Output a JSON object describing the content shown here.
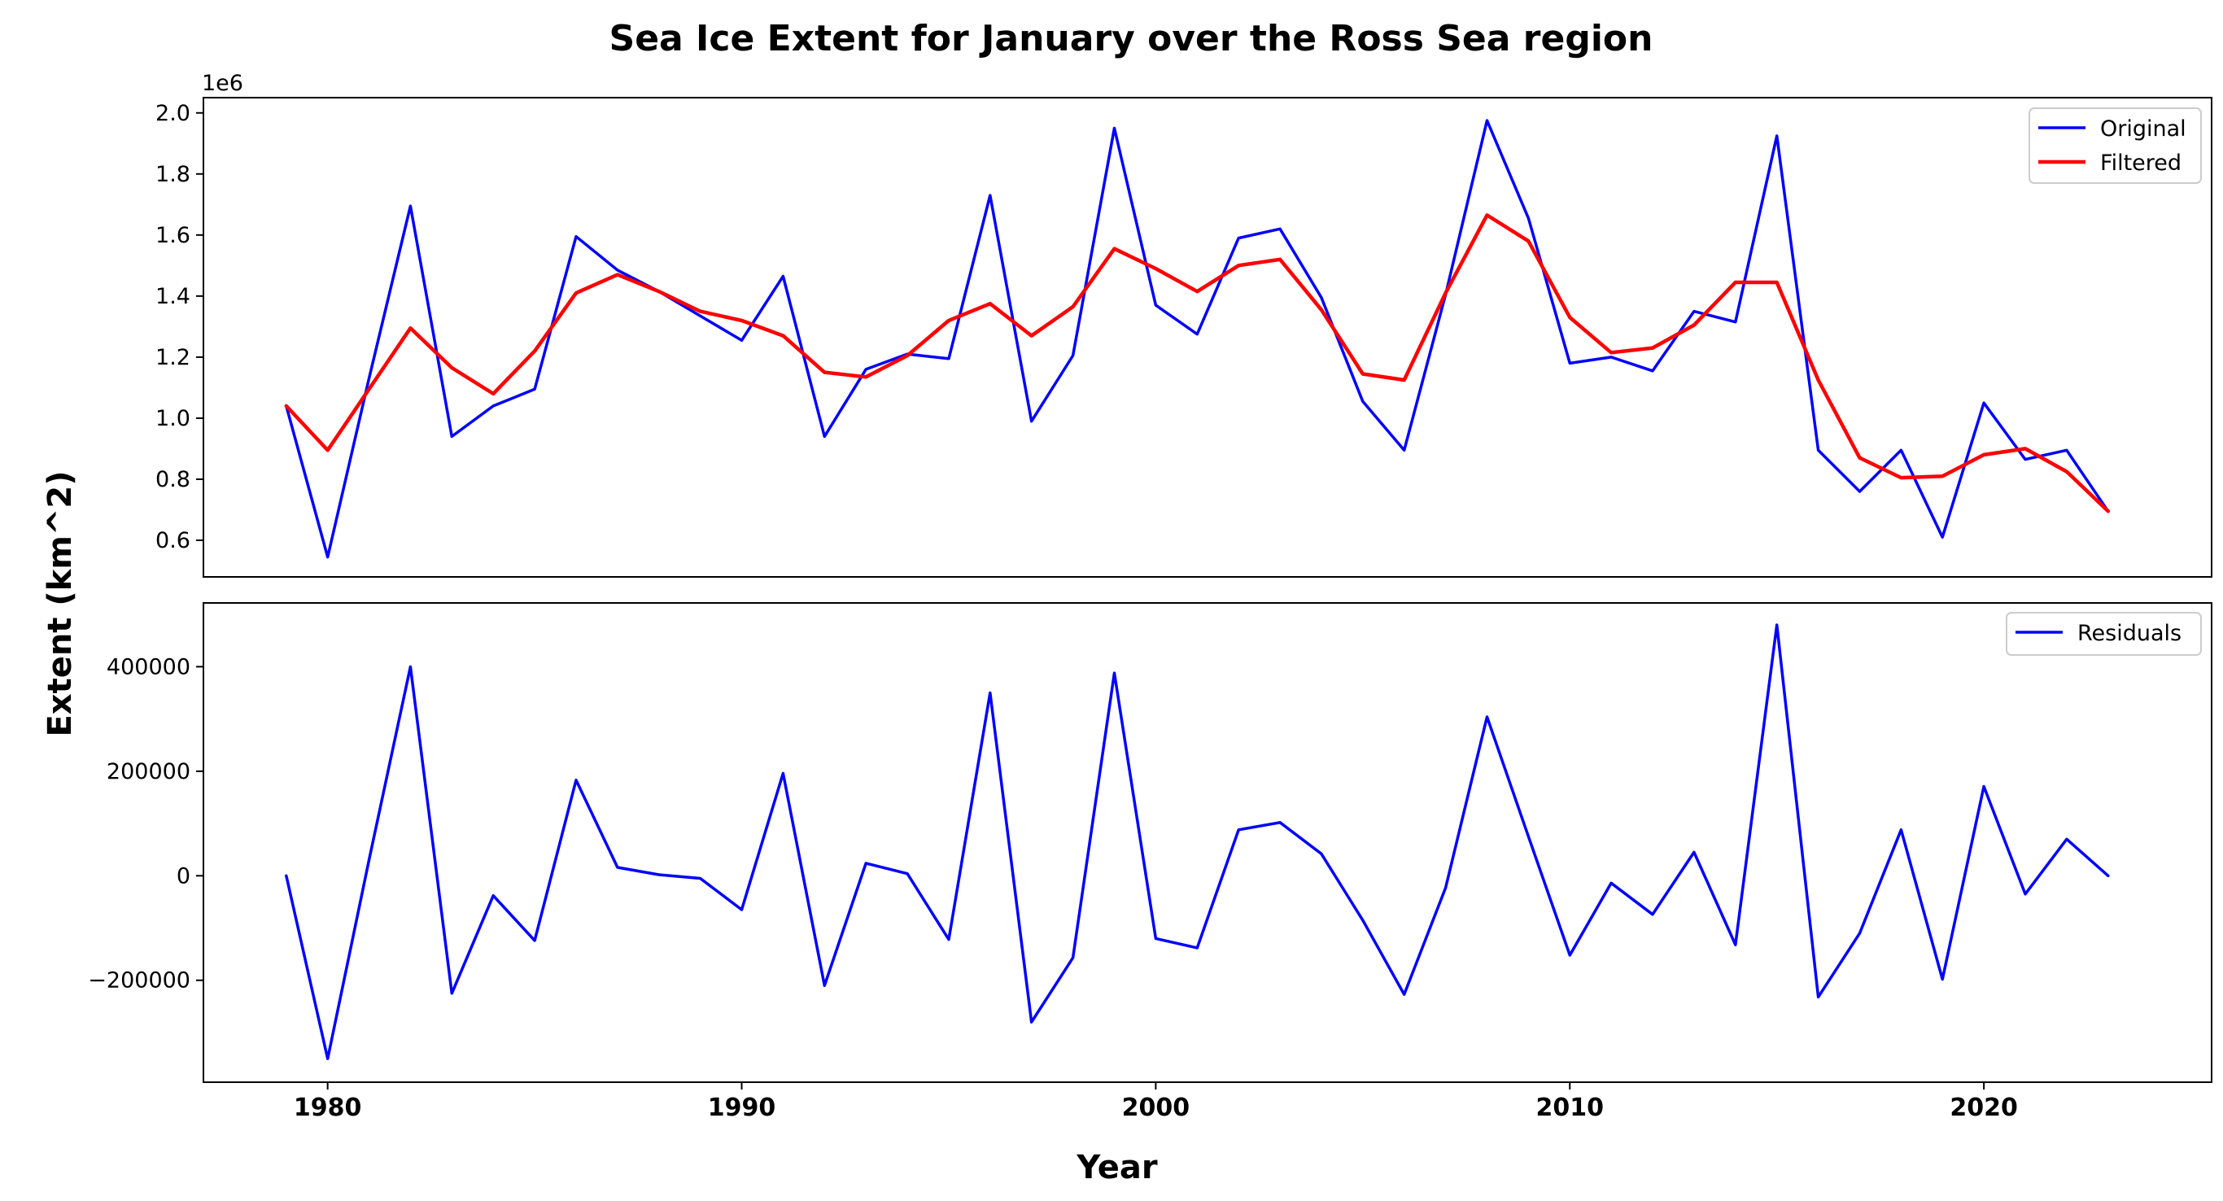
{
  "figure": {
    "title": "Sea Ice Extent for January over the Ross Sea region",
    "ylabel": "Extent (km^2)",
    "xlabel": "Year",
    "x_ticks": [
      "1980",
      "1990",
      "2000",
      "2010",
      "2020"
    ]
  },
  "colors": {
    "original": "#0000ff",
    "filtered": "#ff0000",
    "residuals": "#0000ff"
  },
  "chart_data": [
    {
      "type": "line",
      "scale_label": "1e6",
      "x": [
        1979,
        1980,
        1981,
        1982,
        1983,
        1984,
        1985,
        1986,
        1987,
        1988,
        1989,
        1990,
        1991,
        1992,
        1993,
        1994,
        1995,
        1996,
        1997,
        1998,
        1999,
        2000,
        2001,
        2002,
        2003,
        2004,
        2005,
        2006,
        2007,
        2008,
        2009,
        2010,
        2011,
        2012,
        2013,
        2014,
        2015,
        2016,
        2017,
        2018,
        2019,
        2020,
        2021,
        2022,
        2023
      ],
      "xlim": [
        1977,
        2025.5
      ],
      "ylim": [
        0.48,
        2.05
      ],
      "y_ticks": [
        0.6,
        0.8,
        1.0,
        1.2,
        1.4,
        1.6,
        1.8,
        2.0
      ],
      "y_tick_labels": [
        "0.6",
        "0.8",
        "1.0",
        "1.2",
        "1.4",
        "1.6",
        "1.8",
        "2.0"
      ],
      "legend_position": "upper right",
      "series": [
        {
          "name": "Original",
          "color": "#0000ff",
          "values": [
            1.04,
            0.545,
            1.13,
            1.695,
            0.94,
            1.04,
            1.095,
            1.595,
            1.485,
            1.415,
            1.335,
            1.255,
            1.465,
            0.94,
            1.16,
            1.21,
            1.195,
            1.73,
            0.99,
            1.205,
            1.95,
            1.37,
            1.275,
            1.59,
            1.62,
            1.395,
            1.055,
            0.895,
            1.405,
            1.975,
            1.655,
            1.18,
            1.2,
            1.155,
            1.35,
            1.315,
            1.925,
            0.895,
            0.76,
            0.895,
            0.61,
            1.05,
            0.865,
            0.895,
            0.695
          ]
        },
        {
          "name": "Filtered",
          "color": "#ff0000",
          "values": [
            1.04,
            0.895,
            1.095,
            1.295,
            1.165,
            1.08,
            1.22,
            1.41,
            1.47,
            1.415,
            1.35,
            1.32,
            1.27,
            1.15,
            1.135,
            1.205,
            1.32,
            1.375,
            1.27,
            1.365,
            1.555,
            1.49,
            1.415,
            1.5,
            1.52,
            1.355,
            1.145,
            1.125,
            1.41,
            1.665,
            1.58,
            1.33,
            1.215,
            1.23,
            1.305,
            1.445,
            1.445,
            1.125,
            0.87,
            0.805,
            0.81,
            0.88,
            0.9,
            0.825,
            0.695
          ]
        }
      ]
    },
    {
      "type": "line",
      "x": [
        1979,
        1980,
        1981,
        1982,
        1983,
        1984,
        1985,
        1986,
        1987,
        1988,
        1989,
        1990,
        1991,
        1992,
        1993,
        1994,
        1995,
        1996,
        1997,
        1998,
        1999,
        2000,
        2001,
        2002,
        2003,
        2004,
        2005,
        2006,
        2007,
        2008,
        2009,
        2010,
        2011,
        2012,
        2013,
        2014,
        2015,
        2016,
        2017,
        2018,
        2019,
        2020,
        2021,
        2022,
        2023
      ],
      "xlim": [
        1977,
        2025.5
      ],
      "ylim": [
        -395000,
        522000
      ],
      "y_ticks": [
        -200000,
        0,
        200000,
        400000
      ],
      "y_tick_labels": [
        "−200000",
        "0",
        "200000",
        "400000"
      ],
      "legend_position": "upper right",
      "series": [
        {
          "name": "Residuals",
          "color": "#0000ff",
          "values": [
            0,
            -350000,
            30000,
            400000,
            -225000,
            -38000,
            -124000,
            183000,
            16000,
            2000,
            -5000,
            -65000,
            196000,
            -210000,
            24000,
            4000,
            -122000,
            350000,
            -280000,
            -157000,
            388000,
            -120000,
            -138000,
            88000,
            102000,
            42000,
            -85000,
            -227000,
            -23000,
            304000,
            75000,
            -152000,
            -14000,
            -74000,
            45000,
            -132000,
            480000,
            -232000,
            -110000,
            88000,
            -198000,
            171000,
            -35000,
            70000,
            0
          ]
        }
      ]
    }
  ]
}
